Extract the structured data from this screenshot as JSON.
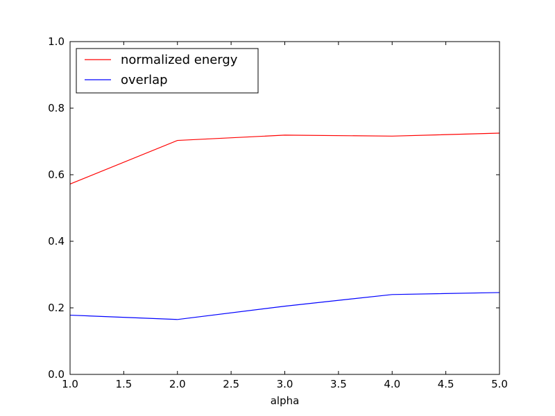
{
  "chart_data": {
    "type": "line",
    "title": "",
    "xlabel": "alpha",
    "ylabel": "",
    "xlim": [
      1.0,
      5.0
    ],
    "ylim": [
      0.0,
      1.0
    ],
    "x": [
      1.0,
      2.0,
      3.0,
      4.0,
      5.0
    ],
    "xticks": [
      "1.0",
      "1.5",
      "2.0",
      "2.5",
      "3.0",
      "3.5",
      "4.0",
      "4.5",
      "5.0"
    ],
    "yticks": [
      "0.0",
      "0.2",
      "0.4",
      "0.6",
      "0.8",
      "1.0"
    ],
    "grid": false,
    "legend_position": "top-left",
    "series": [
      {
        "name": "normalized energy",
        "color": "#ff0000",
        "values": [
          0.572,
          0.703,
          0.719,
          0.716,
          0.725
        ]
      },
      {
        "name": "overlap",
        "color": "#0000ff",
        "values": [
          0.178,
          0.165,
          0.205,
          0.24,
          0.246
        ]
      }
    ]
  }
}
